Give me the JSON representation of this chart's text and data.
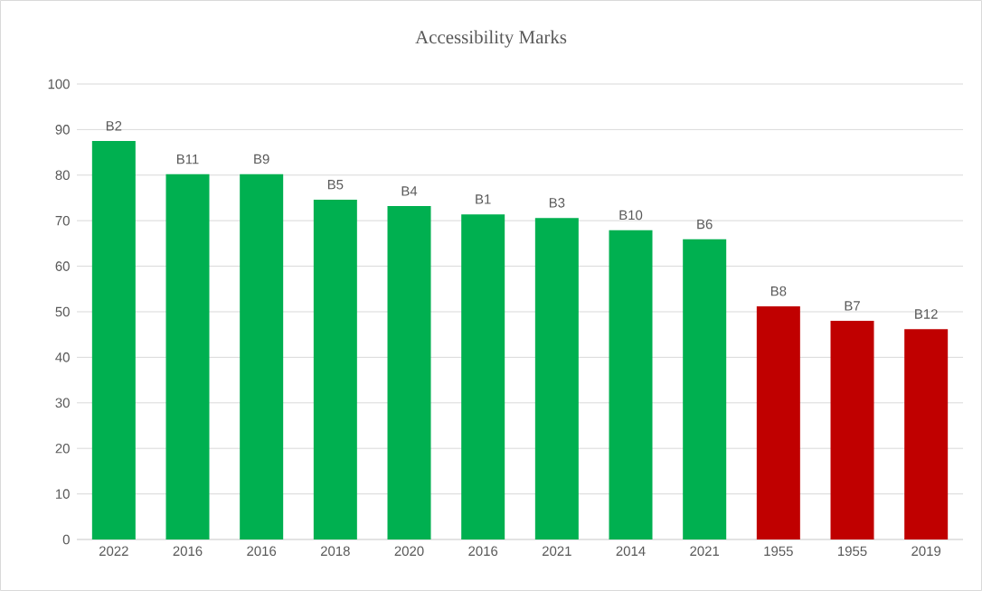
{
  "chart_data": {
    "type": "bar",
    "title": "Accessibility Marks",
    "categories": [
      "2022",
      "2016",
      "2016",
      "2018",
      "2020",
      "2016",
      "2021",
      "2014",
      "2021",
      "1955",
      "1955",
      "2019"
    ],
    "values": [
      87.5,
      80.2,
      80.2,
      74.6,
      73.2,
      71.4,
      70.6,
      67.9,
      65.9,
      51.2,
      48.0,
      46.2
    ],
    "colors": [
      "#00b050",
      "#00b050",
      "#00b050",
      "#00b050",
      "#00b050",
      "#00b050",
      "#00b050",
      "#00b050",
      "#00b050",
      "#c00000",
      "#c00000",
      "#c00000"
    ],
    "value_labels": [
      "B2",
      "B11",
      "B9",
      "B5",
      "B4",
      "B1",
      "B3",
      "B10",
      "B6",
      "B8",
      "B7",
      "B12"
    ],
    "ylim": [
      0,
      100
    ],
    "yticks": [
      0,
      10,
      20,
      30,
      40,
      50,
      60,
      70,
      80,
      90,
      100
    ],
    "grid": "y"
  }
}
